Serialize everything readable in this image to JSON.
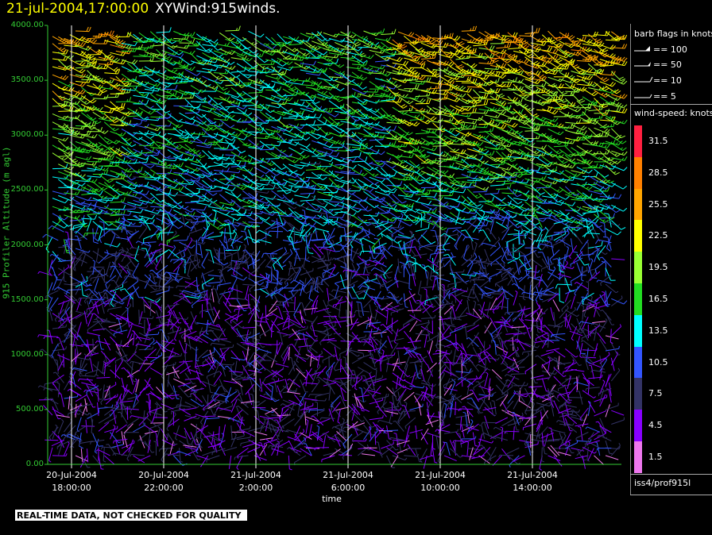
{
  "header": {
    "datetime": "21-jul-2004,17:00:00",
    "name": "XYWind:915winds."
  },
  "notice": "REAL-TIME DATA, NOT CHECKED FOR QUALITY",
  "legend": {
    "flags_title": "barb flags in knots",
    "flags": [
      "== 100",
      "== 50",
      "== 10",
      "== 5"
    ],
    "speed_title": "wind-speed: knots",
    "speed_levels": [
      "31.5",
      "28.5",
      "25.5",
      "22.5",
      "19.5",
      "16.5",
      "13.5",
      "10.5",
      "7.5",
      "4.5",
      "1.5"
    ],
    "speed_colors": [
      "#ff2040",
      "#ff8000",
      "#ffa500",
      "#ffff00",
      "#99ff33",
      "#22dd22",
      "#00ffff",
      "#3355ff",
      "#333366",
      "#8800ff",
      "#ee77ee"
    ],
    "source": "iss4/prof915l"
  },
  "colors": {
    "axis": "#33cc33",
    "vline": "#ffffff",
    "background": "#000000"
  },
  "chart_data": {
    "type": "wind-barb",
    "xlabel": "time",
    "ylabel": "915 Profiler Altitude (m agl)",
    "ylim": [
      0,
      4000
    ],
    "yticks": [
      "0.00",
      "500.00",
      "1000.00",
      "1500.00",
      "2000.00",
      "2500.00",
      "3000.00",
      "3500.00",
      "4000.00"
    ],
    "xticks": [
      {
        "date": "20-Jul-2004",
        "time": "18:00:00"
      },
      {
        "date": "20-Jul-2004",
        "time": "22:00:00"
      },
      {
        "date": "21-Jul-2004",
        "time": "2:00:00"
      },
      {
        "date": "21-Jul-2004",
        "time": "6:00:00"
      },
      {
        "date": "21-Jul-2004",
        "time": "10:00:00"
      },
      {
        "date": "21-Jul-2004",
        "time": "14:00:00"
      }
    ],
    "x_hours_since_first_tick_range": [
      -1.0,
      16.0
    ],
    "profile_interval_minutes": 30,
    "gate_spacing_m": 60
  }
}
